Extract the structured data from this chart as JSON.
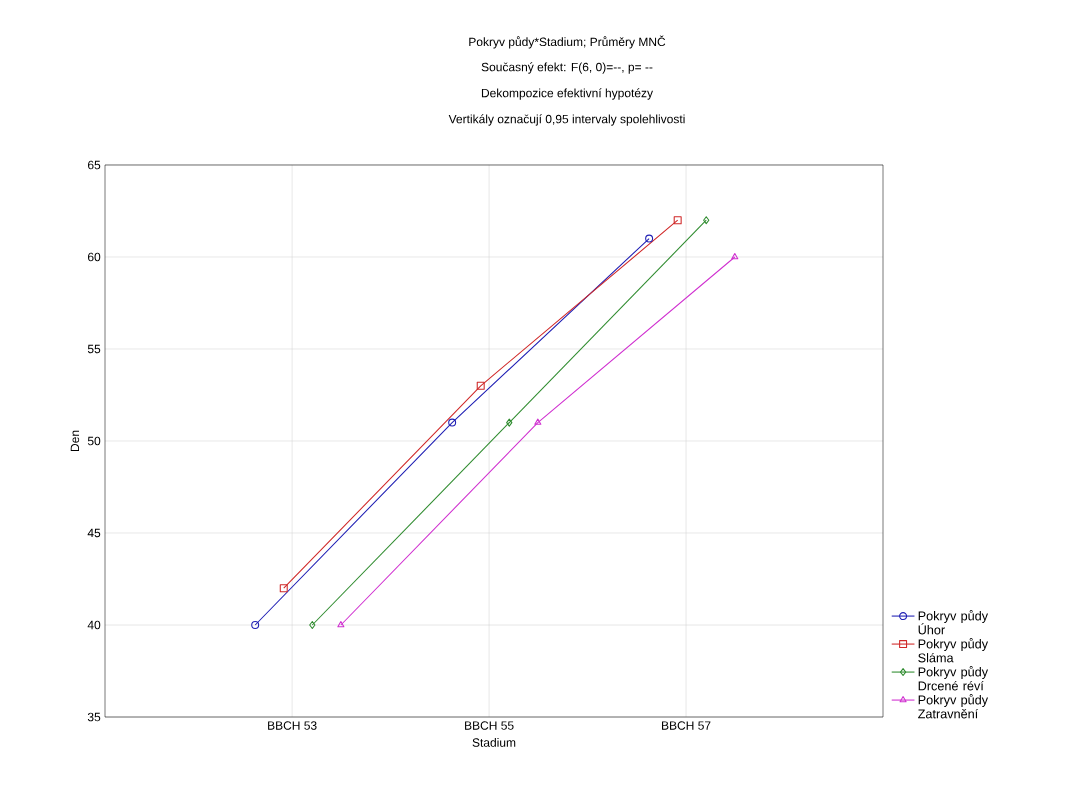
{
  "chart_data": {
    "type": "line",
    "title": "Pokryv půdy*Stadium; Průměry MNČ",
    "subtitle": "Současný efekt: F(6, 0)=--, p= --",
    "annotations": [
      "Dekompozice efektivní hypotézy",
      "Vertikály označují 0,95 intervaly spolehlivosti"
    ],
    "xlabel": "Stadium",
    "ylabel": "Den",
    "categories": [
      "BBCH 53",
      "BBCH 55",
      "BBCH 57"
    ],
    "series": [
      {
        "name": "Pokryv půdy Úhor",
        "color": "#1f1fb4",
        "marker": "circle",
        "values": [
          40,
          51,
          61
        ]
      },
      {
        "name": "Pokryv půdy Sláma",
        "color": "#d02828",
        "marker": "square",
        "values": [
          42,
          53,
          62
        ]
      },
      {
        "name": "Pokryv půdy Drcené réví",
        "color": "#2e8b2e",
        "marker": "diamond",
        "values": [
          40,
          51,
          62
        ]
      },
      {
        "name": "Pokryv půdy Zatravnění",
        "color": "#d030d0",
        "marker": "triangle",
        "values": [
          40,
          51,
          60
        ]
      }
    ],
    "ylim": [
      35,
      65
    ],
    "yticks": [
      35,
      40,
      45,
      50,
      55,
      60,
      65
    ],
    "grid": true,
    "legend": "bottom right",
    "line_style": "solid"
  }
}
